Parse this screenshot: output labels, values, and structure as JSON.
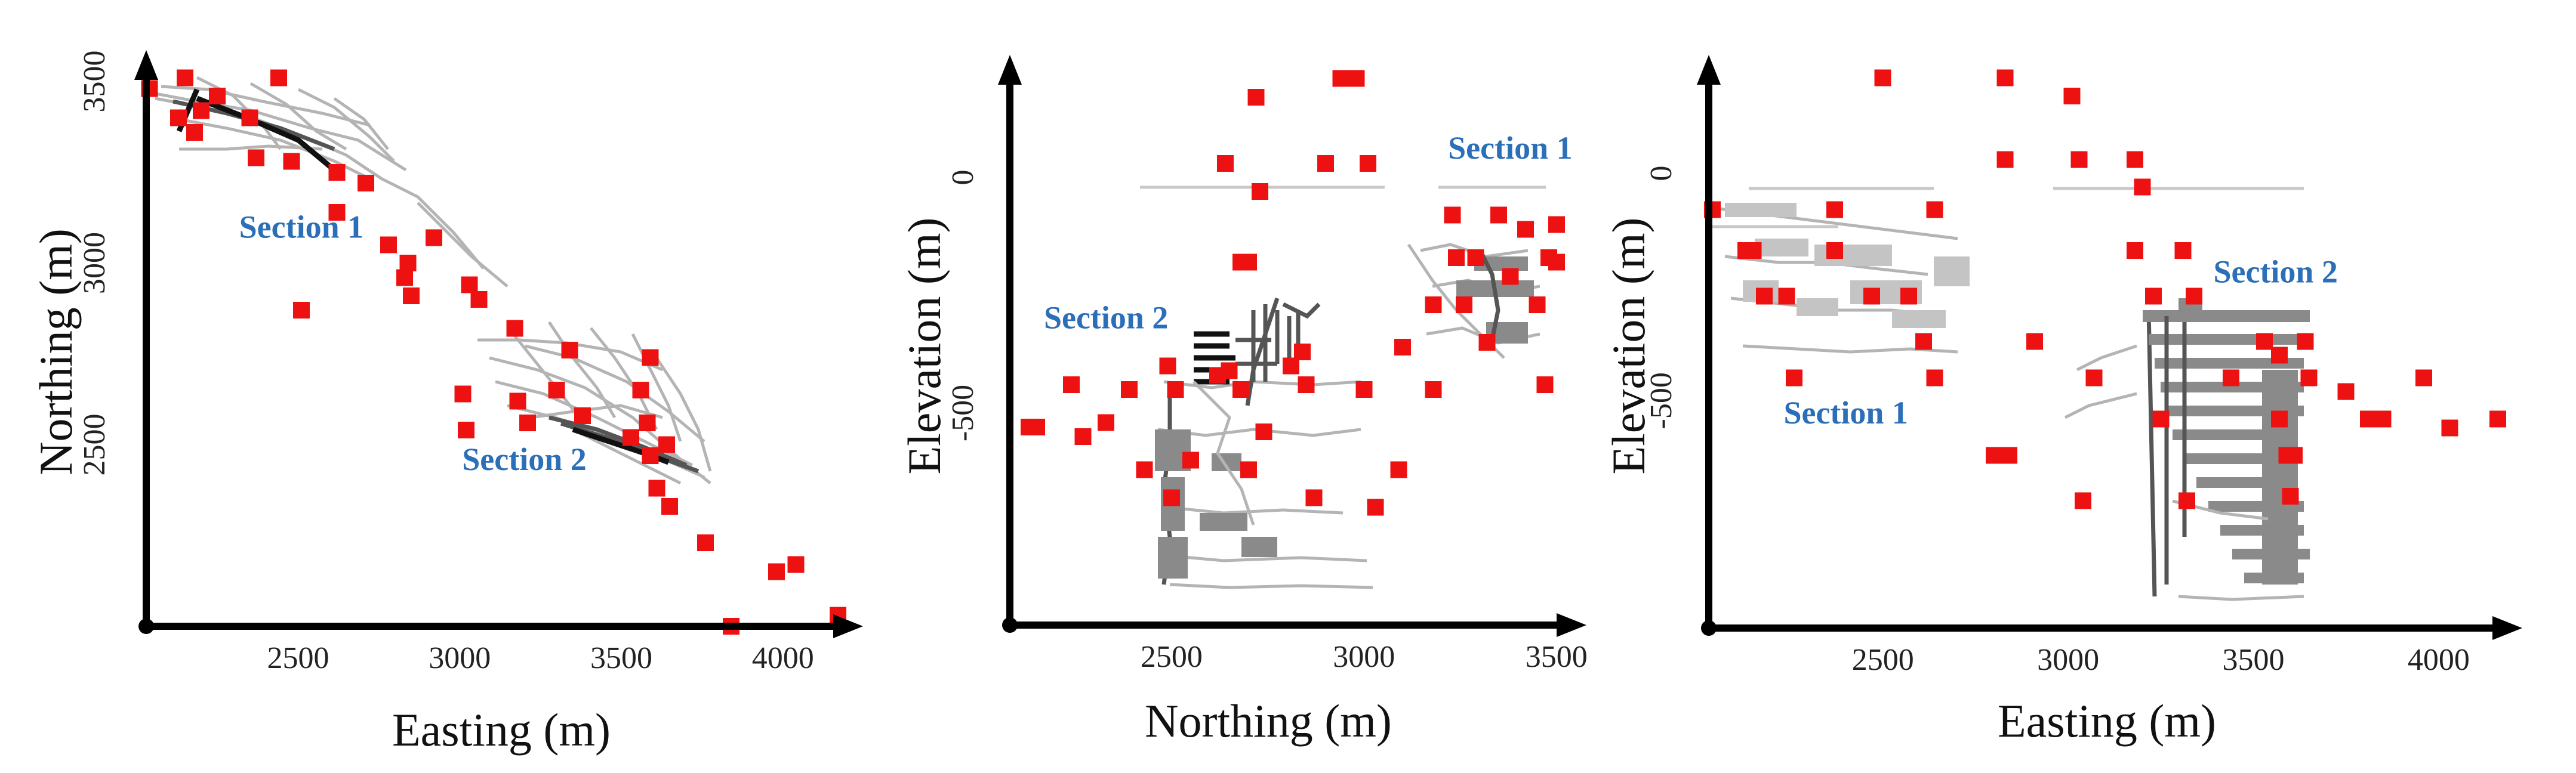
{
  "figure": {
    "marker_color": "#ee1111",
    "section_label_color": "#2b6fb8"
  },
  "chart_data": [
    {
      "type": "scatter",
      "title": "",
      "xlabel": "Easting (m)",
      "ylabel": "Northing (m)",
      "xlim": [
        2030,
        4200
      ],
      "ylim": [
        2000,
        3560
      ],
      "xticks": [
        2500,
        3000,
        3500,
        4000
      ],
      "xtick_labels": [
        "2500",
        "3000",
        "3500",
        "4000"
      ],
      "yticks": [
        2500,
        3000,
        3500
      ],
      "ytick_labels": [
        "2500",
        "3000",
        "3500"
      ],
      "annotations": [
        {
          "text": "Section 1",
          "x": 2510,
          "y": 3070
        },
        {
          "text": "Section 2",
          "x": 3200,
          "y": 2430
        }
      ],
      "series": [
        {
          "name": "stations",
          "points": [
            [
              2040,
              3480
            ],
            [
              2150,
              3510
            ],
            [
              2200,
              3420
            ],
            [
              2250,
              3460
            ],
            [
              2130,
              3400
            ],
            [
              2180,
              3360
            ],
            [
              2370,
              3290
            ],
            [
              2440,
              3510
            ],
            [
              2350,
              3400
            ],
            [
              2480,
              3280
            ],
            [
              2620,
              3250
            ],
            [
              2620,
              3140
            ],
            [
              2710,
              3220
            ],
            [
              2780,
              3050
            ],
            [
              2830,
              2960
            ],
            [
              2840,
              3000
            ],
            [
              2850,
              2910
            ],
            [
              2920,
              3070
            ],
            [
              2510,
              2870
            ],
            [
              3030,
              2940
            ],
            [
              3060,
              2900
            ],
            [
              3170,
              2820
            ],
            [
              3010,
              2640
            ],
            [
              3020,
              2540
            ],
            [
              3180,
              2620
            ],
            [
              3210,
              2560
            ],
            [
              3300,
              2650
            ],
            [
              3340,
              2760
            ],
            [
              3380,
              2580
            ],
            [
              3530,
              2520
            ],
            [
              3560,
              2650
            ],
            [
              3580,
              2560
            ],
            [
              3590,
              2740
            ],
            [
              3590,
              2470
            ],
            [
              3610,
              2380
            ],
            [
              3640,
              2500
            ],
            [
              3650,
              2330
            ],
            [
              3760,
              2230
            ],
            [
              3840,
              2000
            ],
            [
              3980,
              2150
            ],
            [
              4040,
              2170
            ],
            [
              4170,
              2030
            ]
          ]
        }
      ]
    },
    {
      "type": "scatter",
      "title": "",
      "xlabel": "Northing (m)",
      "ylabel": "Elevation (m)",
      "xlim": [
        2080,
        3550
      ],
      "ylim": [
        -950,
        250
      ],
      "xticks": [
        2500,
        3000,
        3500
      ],
      "xtick_labels": [
        "2500",
        "3000",
        "3500"
      ],
      "yticks": [
        -500,
        0
      ],
      "ytick_labels": [
        "-500",
        "0"
      ],
      "annotations": [
        {
          "text": "Section 1",
          "x": 3380,
          "y": 40
        },
        {
          "text": "Section 2",
          "x": 2330,
          "y": -320
        }
      ],
      "series": [
        {
          "name": "stations",
          "points": [
            [
              2130,
              -530
            ],
            [
              2150,
              -530
            ],
            [
              2240,
              -440
            ],
            [
              2270,
              -550
            ],
            [
              2330,
              -520
            ],
            [
              2390,
              -450
            ],
            [
              2430,
              -620
            ],
            [
              2490,
              -400
            ],
            [
              2510,
              -450
            ],
            [
              2500,
              -680
            ],
            [
              2550,
              -600
            ],
            [
              2640,
              30
            ],
            [
              2720,
              170
            ],
            [
              2730,
              -30
            ],
            [
              2680,
              -180
            ],
            [
              2700,
              -180
            ],
            [
              2620,
              -420
            ],
            [
              2650,
              -410
            ],
            [
              2680,
              -450
            ],
            [
              2700,
              -620
            ],
            [
              2740,
              -540
            ],
            [
              2810,
              -400
            ],
            [
              2840,
              -370
            ],
            [
              2850,
              -440
            ],
            [
              2870,
              -680
            ],
            [
              2900,
              30
            ],
            [
              2940,
              210
            ],
            [
              2980,
              210
            ],
            [
              3010,
              30
            ],
            [
              3000,
              -450
            ],
            [
              3030,
              -700
            ],
            [
              3090,
              -620
            ],
            [
              3100,
              -360
            ],
            [
              3180,
              -270
            ],
            [
              3180,
              -450
            ],
            [
              3230,
              -80
            ],
            [
              3240,
              -170
            ],
            [
              3260,
              -270
            ],
            [
              3290,
              -170
            ],
            [
              3320,
              -350
            ],
            [
              3350,
              -80
            ],
            [
              3380,
              -210
            ],
            [
              3420,
              -110
            ],
            [
              3450,
              -270
            ],
            [
              3470,
              -440
            ],
            [
              3480,
              -170
            ],
            [
              3500,
              -100
            ],
            [
              3500,
              -180
            ]
          ]
        }
      ]
    },
    {
      "type": "scatter",
      "title": "",
      "xlabel": "Easting (m)",
      "ylabel": "Elevation (m)",
      "xlim": [
        2030,
        4200
      ],
      "ylim": [
        -1000,
        250
      ],
      "xticks": [
        2500,
        3000,
        3500,
        4000
      ],
      "xtick_labels": [
        "2500",
        "3000",
        "3500",
        "4000"
      ],
      "yticks": [
        -500,
        0
      ],
      "ytick_labels": [
        "-500",
        "0"
      ],
      "annotations": [
        {
          "text": "Section 1",
          "x": 2400,
          "y": -550
        },
        {
          "text": "Section 2",
          "x": 3560,
          "y": -240
        }
      ],
      "series": [
        {
          "name": "stations",
          "points": [
            [
              2040,
              -80
            ],
            [
              2130,
              -170
            ],
            [
              2150,
              -170
            ],
            [
              2180,
              -270
            ],
            [
              2240,
              -270
            ],
            [
              2260,
              -450
            ],
            [
              2370,
              -80
            ],
            [
              2370,
              -170
            ],
            [
              2470,
              -270
            ],
            [
              2500,
              210
            ],
            [
              2570,
              -270
            ],
            [
              2610,
              -370
            ],
            [
              2640,
              -450
            ],
            [
              2640,
              -80
            ],
            [
              2800,
              -620
            ],
            [
              2830,
              210
            ],
            [
              2840,
              -620
            ],
            [
              2830,
              30
            ],
            [
              2910,
              -370
            ],
            [
              3010,
              170
            ],
            [
              3030,
              30
            ],
            [
              3040,
              -720
            ],
            [
              3070,
              -450
            ],
            [
              3180,
              30
            ],
            [
              3200,
              -30
            ],
            [
              3180,
              -170
            ],
            [
              3230,
              -270
            ],
            [
              3250,
              -540
            ],
            [
              3310,
              -170
            ],
            [
              3320,
              -720
            ],
            [
              3340,
              -270
            ],
            [
              3440,
              -450
            ],
            [
              3530,
              -370
            ],
            [
              3570,
              -400
            ],
            [
              3570,
              -540
            ],
            [
              3590,
              -620
            ],
            [
              3600,
              -710
            ],
            [
              3610,
              -620
            ],
            [
              3640,
              -370
            ],
            [
              3650,
              -450
            ],
            [
              3750,
              -480
            ],
            [
              3810,
              -540
            ],
            [
              3850,
              -540
            ],
            [
              3960,
              -450
            ],
            [
              4030,
              -560
            ],
            [
              4160,
              -540
            ]
          ]
        }
      ]
    }
  ]
}
